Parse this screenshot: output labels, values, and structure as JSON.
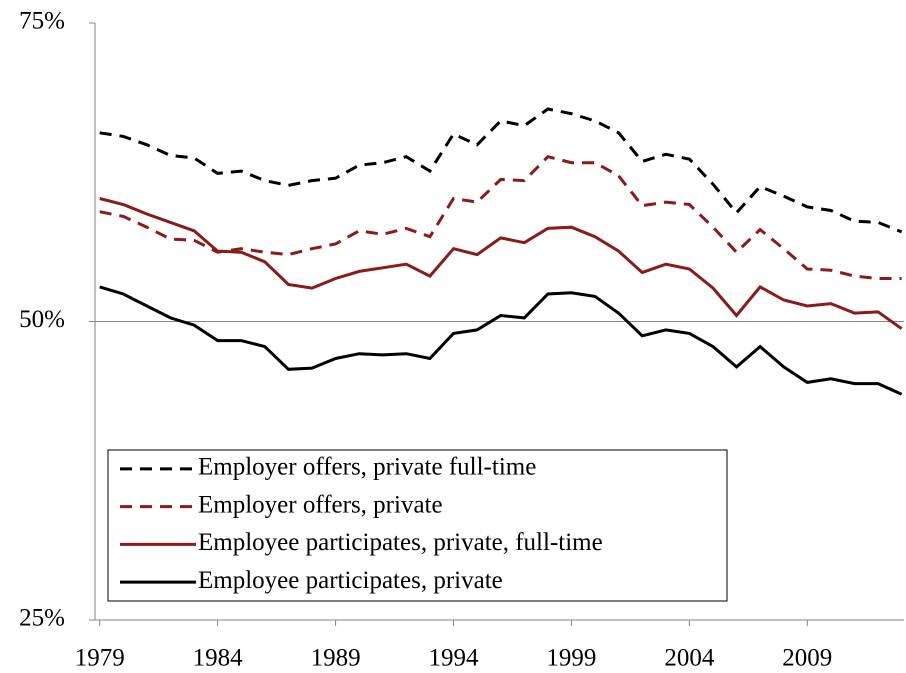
{
  "chart_data": {
    "type": "line",
    "x": [
      1979,
      1980,
      1981,
      1982,
      1983,
      1984,
      1985,
      1986,
      1987,
      1988,
      1989,
      1990,
      1991,
      1992,
      1993,
      1994,
      1995,
      1996,
      1997,
      1998,
      1999,
      2000,
      2001,
      2002,
      2003,
      2004,
      2005,
      2006,
      2007,
      2008,
      2009,
      2010,
      2011,
      2012,
      2013
    ],
    "xlim": [
      1978.8,
      2013.1
    ],
    "xticks": [
      1979,
      1984,
      1989,
      1994,
      1999,
      2004,
      2009
    ],
    "ylim": [
      25,
      75
    ],
    "yticks": [
      {
        "value": 25,
        "label": "25%"
      },
      {
        "value": 50,
        "label": "50%"
      },
      {
        "value": 75,
        "label": "75%"
      }
    ],
    "grid": true,
    "legend": "lower-left",
    "series": [
      {
        "name": "Employer offers, private full-time",
        "color": "#000000",
        "dashed": true,
        "values": [
          65.8,
          65.5,
          64.8,
          63.9,
          63.7,
          62.4,
          62.6,
          61.8,
          61.4,
          61.8,
          62.0,
          63.1,
          63.3,
          63.8,
          62.6,
          65.7,
          64.8,
          66.8,
          66.4,
          67.8,
          67.4,
          66.8,
          65.8,
          63.4,
          64.0,
          63.6,
          61.5,
          59.1,
          61.3,
          60.5,
          59.6,
          59.3,
          58.4,
          58.3,
          57.5
        ]
      },
      {
        "name": "Employer offers, private",
        "color": "#8b1a1a",
        "dashed": true,
        "values": [
          59.2,
          58.8,
          57.9,
          56.9,
          56.8,
          55.8,
          56.1,
          55.8,
          55.6,
          56.1,
          56.5,
          57.6,
          57.3,
          57.8,
          57.1,
          60.3,
          60.0,
          61.9,
          61.8,
          63.8,
          63.3,
          63.3,
          62.2,
          59.7,
          60.0,
          59.8,
          57.9,
          55.8,
          57.7,
          56.1,
          54.4,
          54.3,
          53.8,
          53.6,
          53.6
        ]
      },
      {
        "name": "Employee participates, private, full-time",
        "color": "#8b1a1a",
        "dashed": false,
        "values": [
          60.3,
          59.8,
          59.0,
          58.3,
          57.6,
          55.9,
          55.8,
          55.0,
          53.1,
          52.8,
          53.6,
          54.2,
          54.5,
          54.8,
          53.8,
          56.1,
          55.6,
          57.0,
          56.6,
          57.8,
          57.9,
          57.1,
          55.9,
          54.1,
          54.8,
          54.4,
          52.8,
          50.5,
          52.9,
          51.8,
          51.3,
          51.5,
          50.7,
          50.8,
          49.4
        ]
      },
      {
        "name": "Employee participates, private",
        "color": "#000000",
        "dashed": false,
        "values": [
          52.9,
          52.3,
          51.3,
          50.3,
          49.7,
          48.4,
          48.4,
          47.9,
          46.0,
          46.1,
          46.9,
          47.3,
          47.2,
          47.3,
          46.9,
          49.0,
          49.3,
          50.5,
          50.3,
          52.3,
          52.4,
          52.1,
          50.7,
          48.8,
          49.3,
          49.0,
          47.9,
          46.2,
          47.9,
          46.2,
          44.9,
          45.2,
          44.8,
          44.8,
          43.9
        ]
      }
    ]
  }
}
